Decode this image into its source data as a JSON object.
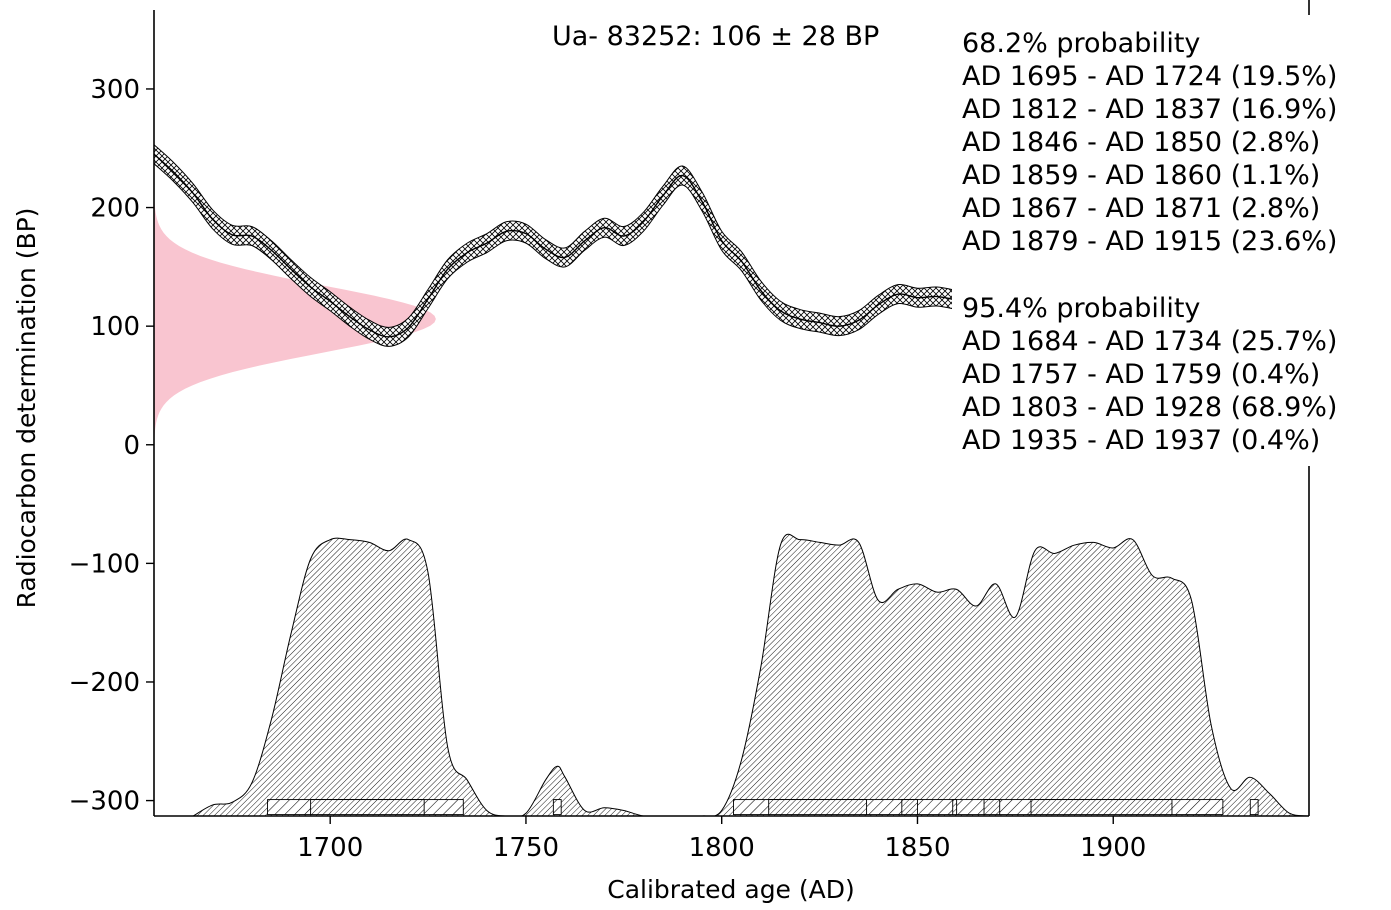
{
  "chart_data": {
    "type": "area",
    "title": "Ua- 83252: 106 ± 28 BP",
    "xlabel": "Calibrated age (AD)",
    "ylabel": "Radiocarbon determination (BP)",
    "xlim": [
      1655,
      1950
    ],
    "ylim": [
      -313,
      375
    ],
    "x_ticks": [
      1700,
      1750,
      1800,
      1850,
      1900
    ],
    "x_tick_labels": [
      "1700",
      "1750",
      "1800",
      "1850",
      "1900"
    ],
    "y_ticks": [
      300,
      200,
      100,
      0,
      -100,
      -200,
      -300
    ],
    "y_tick_labels": [
      "300",
      "200",
      "100",
      "0",
      "−100",
      "−200",
      "−300"
    ],
    "grid": false,
    "measurement": {
      "bp": 106,
      "error": 28
    },
    "calibration_curve": {
      "x": [
        1655,
        1660,
        1665,
        1670,
        1675,
        1680,
        1685,
        1690,
        1695,
        1700,
        1705,
        1710,
        1715,
        1720,
        1725,
        1730,
        1735,
        1740,
        1745,
        1750,
        1755,
        1760,
        1765,
        1770,
        1775,
        1780,
        1785,
        1790,
        1795,
        1800,
        1805,
        1810,
        1815,
        1820,
        1825,
        1830,
        1835,
        1840,
        1845,
        1850,
        1855,
        1860
      ],
      "y": [
        245,
        230,
        212,
        190,
        177,
        176,
        164,
        148,
        133,
        121,
        108,
        97,
        91,
        99,
        123,
        148,
        162,
        170,
        180,
        178,
        165,
        158,
        172,
        183,
        176,
        188,
        210,
        227,
        205,
        172,
        155,
        130,
        113,
        106,
        103,
        100,
        105,
        118,
        127,
        124,
        125,
        122
      ],
      "band": 8
    },
    "annotations": {
      "p68_title": "68.2% probability",
      "p68_ranges": [
        "AD 1695 - AD 1724 (19.5%)",
        "AD 1812 - AD 1837 (16.9%)",
        "AD 1846 - AD 1850 (2.8%)",
        "AD 1859 - AD 1860 (1.1%)",
        "AD 1867 - AD 1871 (2.8%)",
        "AD 1879 - AD 1915 (23.6%)"
      ],
      "p95_title": "95.4% probability",
      "p95_ranges": [
        "AD 1684 - AD 1734 (25.7%)",
        "AD 1757 - AD 1759 (0.4%)",
        "AD 1803 - AD 1928 (68.9%)",
        "AD 1935 - AD 1937 (0.4%)"
      ]
    },
    "posterior_distribution": {
      "x": [
        1665,
        1670,
        1675,
        1680,
        1685,
        1690,
        1695,
        1700,
        1705,
        1710,
        1715,
        1720,
        1725,
        1730,
        1735,
        1740,
        1745,
        1750,
        1755,
        1758,
        1760,
        1765,
        1770,
        1775,
        1780,
        1785,
        1790,
        1795,
        1800,
        1805,
        1810,
        1815,
        1820,
        1825,
        1830,
        1835,
        1840,
        1845,
        1850,
        1855,
        1860,
        1865,
        1870,
        1875,
        1880,
        1885,
        1890,
        1895,
        1900,
        1905,
        1910,
        1915,
        1920,
        1925,
        1930,
        1935,
        1940,
        1945,
        1950
      ],
      "density": [
        0.0,
        0.04,
        0.05,
        0.12,
        0.35,
        0.66,
        0.93,
        1.0,
        1.0,
        0.99,
        0.96,
        1.0,
        0.88,
        0.25,
        0.13,
        0.02,
        0.0,
        0.01,
        0.13,
        0.18,
        0.14,
        0.02,
        0.03,
        0.02,
        0.0,
        0.0,
        0.0,
        0.0,
        0.02,
        0.2,
        0.54,
        0.98,
        1.0,
        0.99,
        0.98,
        0.99,
        0.78,
        0.82,
        0.84,
        0.81,
        0.82,
        0.76,
        0.84,
        0.72,
        0.96,
        0.95,
        0.98,
        0.99,
        0.97,
        1.0,
        0.87,
        0.86,
        0.78,
        0.33,
        0.1,
        0.14,
        0.08,
        0.01,
        0.0
      ]
    },
    "range_bars": {
      "p68": [
        [
          1695,
          1724
        ],
        [
          1812,
          1837
        ],
        [
          1846,
          1850
        ],
        [
          1859,
          1860
        ],
        [
          1867,
          1871
        ],
        [
          1879,
          1915
        ]
      ],
      "p95": [
        [
          1684,
          1734
        ],
        [
          1757,
          1759
        ],
        [
          1803,
          1928
        ],
        [
          1935,
          1937
        ]
      ]
    },
    "colors": {
      "measurement_fill": "#f9c5d0",
      "ink": "#000000"
    }
  }
}
